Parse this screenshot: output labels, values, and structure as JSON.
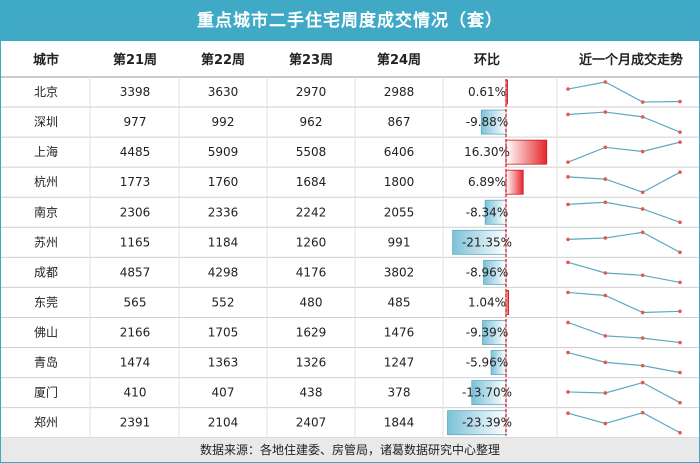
{
  "title": "重点城市二手住宅周度成交情况（套）",
  "footer": "数据来源：各地住建委、房管局，诸葛数据研究中心整理",
  "colors": {
    "header_bg": "#3fa9c6",
    "negative_bar": "#7cc1d8",
    "positive_bar": "#e5262b",
    "sparkline_line": "#5ea9c4",
    "sparkline_marker": "#e05a4f",
    "zero_line": "#e5262b"
  },
  "chart_data": {
    "type": "table",
    "columns": [
      "城市",
      "第21周",
      "第22周",
      "第23周",
      "第24周",
      "环比",
      "近一个月成交走势"
    ],
    "rows": [
      {
        "city": "北京",
        "w21": 3398,
        "w22": 3630,
        "w23": 2970,
        "w24": 2988,
        "mom": "0.61%"
      },
      {
        "city": "深圳",
        "w21": 977,
        "w22": 992,
        "w23": 962,
        "w24": 867,
        "mom": "-9.88%"
      },
      {
        "city": "上海",
        "w21": 4485,
        "w22": 5909,
        "w23": 5508,
        "w24": 6406,
        "mom": "16.30%"
      },
      {
        "city": "杭州",
        "w21": 1773,
        "w22": 1760,
        "w23": 1684,
        "w24": 1800,
        "mom": "6.89%"
      },
      {
        "city": "南京",
        "w21": 2306,
        "w22": 2336,
        "w23": 2242,
        "w24": 2055,
        "mom": "-8.34%"
      },
      {
        "city": "苏州",
        "w21": 1165,
        "w22": 1184,
        "w23": 1260,
        "w24": 991,
        "mom": "-21.35%"
      },
      {
        "city": "成都",
        "w21": 4857,
        "w22": 4298,
        "w23": 4176,
        "w24": 3802,
        "mom": "-8.96%"
      },
      {
        "city": "东莞",
        "w21": 565,
        "w22": 552,
        "w23": 480,
        "w24": 485,
        "mom": "1.04%"
      },
      {
        "city": "佛山",
        "w21": 2166,
        "w22": 1705,
        "w23": 1629,
        "w24": 1476,
        "mom": "-9.39%"
      },
      {
        "city": "青岛",
        "w21": 1474,
        "w22": 1363,
        "w23": 1326,
        "w24": 1247,
        "mom": "-5.96%"
      },
      {
        "city": "厦门",
        "w21": 410,
        "w22": 407,
        "w23": 438,
        "w24": 378,
        "mom": "-13.70%"
      },
      {
        "city": "郑州",
        "w21": 2391,
        "w22": 2104,
        "w23": 2407,
        "w24": 1844,
        "mom": "-23.39%"
      }
    ]
  }
}
